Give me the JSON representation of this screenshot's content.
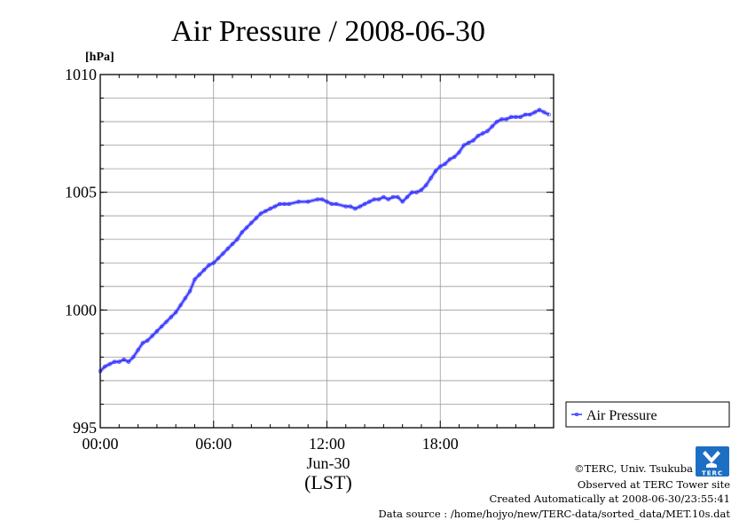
{
  "chart_data": {
    "type": "line",
    "title": "Air Pressure / 2008-06-30",
    "ylabel": "[hPa]",
    "xlabel_date": "Jun-30",
    "xlabel_tz": "(LST)",
    "ylim": [
      995,
      1010
    ],
    "xlim": [
      0,
      24
    ],
    "y_ticks": [
      {
        "value": 995,
        "label": "995"
      },
      {
        "value": 1000,
        "label": "1000"
      },
      {
        "value": 1005,
        "label": "1005"
      },
      {
        "value": 1010,
        "label": "1010"
      }
    ],
    "x_ticks": [
      {
        "value": 0,
        "label": "00:00"
      },
      {
        "value": 6,
        "label": "06:00"
      },
      {
        "value": 12,
        "label": "12:00"
      },
      {
        "value": 18,
        "label": "18:00"
      }
    ],
    "grid": true,
    "legend_position": "right-bottom",
    "series": [
      {
        "name": "Air Pressure",
        "color": "#3333ff",
        "points": [
          [
            0.0,
            997.4
          ],
          [
            0.25,
            997.6
          ],
          [
            0.5,
            997.7
          ],
          [
            0.75,
            997.8
          ],
          [
            1.0,
            997.8
          ],
          [
            1.25,
            997.9
          ],
          [
            1.5,
            997.8
          ],
          [
            1.75,
            998.0
          ],
          [
            2.0,
            998.3
          ],
          [
            2.25,
            998.6
          ],
          [
            2.5,
            998.7
          ],
          [
            2.75,
            998.9
          ],
          [
            3.0,
            999.1
          ],
          [
            3.25,
            999.3
          ],
          [
            3.5,
            999.5
          ],
          [
            3.75,
            999.7
          ],
          [
            4.0,
            999.9
          ],
          [
            4.25,
            1000.2
          ],
          [
            4.5,
            1000.5
          ],
          [
            4.75,
            1000.8
          ],
          [
            5.0,
            1001.3
          ],
          [
            5.25,
            1001.5
          ],
          [
            5.5,
            1001.7
          ],
          [
            5.75,
            1001.9
          ],
          [
            6.0,
            1002.0
          ],
          [
            6.25,
            1002.2
          ],
          [
            6.5,
            1002.4
          ],
          [
            6.75,
            1002.6
          ],
          [
            7.0,
            1002.8
          ],
          [
            7.25,
            1003.0
          ],
          [
            7.5,
            1003.3
          ],
          [
            7.75,
            1003.5
          ],
          [
            8.0,
            1003.7
          ],
          [
            8.25,
            1003.9
          ],
          [
            8.5,
            1004.1
          ],
          [
            8.75,
            1004.2
          ],
          [
            9.0,
            1004.3
          ],
          [
            9.25,
            1004.4
          ],
          [
            9.5,
            1004.5
          ],
          [
            9.75,
            1004.5
          ],
          [
            10.0,
            1004.5
          ],
          [
            10.5,
            1004.6
          ],
          [
            11.0,
            1004.6
          ],
          [
            11.5,
            1004.7
          ],
          [
            11.75,
            1004.7
          ],
          [
            12.0,
            1004.6
          ],
          [
            12.25,
            1004.5
          ],
          [
            12.5,
            1004.5
          ],
          [
            13.0,
            1004.4
          ],
          [
            13.25,
            1004.4
          ],
          [
            13.5,
            1004.3
          ],
          [
            13.75,
            1004.4
          ],
          [
            14.0,
            1004.5
          ],
          [
            14.25,
            1004.6
          ],
          [
            14.5,
            1004.7
          ],
          [
            14.75,
            1004.7
          ],
          [
            15.0,
            1004.8
          ],
          [
            15.25,
            1004.7
          ],
          [
            15.5,
            1004.8
          ],
          [
            15.75,
            1004.8
          ],
          [
            16.0,
            1004.6
          ],
          [
            16.25,
            1004.8
          ],
          [
            16.5,
            1005.0
          ],
          [
            16.75,
            1005.0
          ],
          [
            17.0,
            1005.1
          ],
          [
            17.25,
            1005.3
          ],
          [
            17.5,
            1005.6
          ],
          [
            17.75,
            1005.9
          ],
          [
            18.0,
            1006.1
          ],
          [
            18.25,
            1006.2
          ],
          [
            18.5,
            1006.4
          ],
          [
            18.75,
            1006.5
          ],
          [
            19.0,
            1006.7
          ],
          [
            19.25,
            1007.0
          ],
          [
            19.5,
            1007.1
          ],
          [
            19.75,
            1007.2
          ],
          [
            20.0,
            1007.4
          ],
          [
            20.25,
            1007.5
          ],
          [
            20.5,
            1007.6
          ],
          [
            20.75,
            1007.8
          ],
          [
            21.0,
            1008.0
          ],
          [
            21.25,
            1008.1
          ],
          [
            21.5,
            1008.1
          ],
          [
            21.75,
            1008.2
          ],
          [
            22.0,
            1008.2
          ],
          [
            22.25,
            1008.2
          ],
          [
            22.5,
            1008.3
          ],
          [
            22.75,
            1008.3
          ],
          [
            23.0,
            1008.4
          ],
          [
            23.25,
            1008.5
          ],
          [
            23.5,
            1008.4
          ],
          [
            23.75,
            1008.3
          ]
        ]
      }
    ]
  },
  "legend": {
    "label": "Air Pressure"
  },
  "credits": {
    "copyright": "©TERC, Univ. Tsukuba",
    "observed": "Observed at TERC Tower site",
    "created": "Created Automatically at 2008-06-30/23:55:41",
    "source": "Data source : /home/hojyo/new/TERC-data/sorted_data/MET.10s.dat"
  },
  "logo_text": "TERC"
}
